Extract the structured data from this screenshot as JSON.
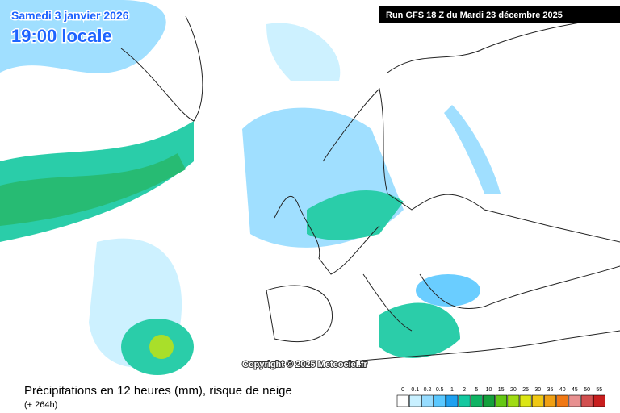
{
  "header": {
    "date": "Samedi 3 janvier 2026",
    "time": "19:00 locale",
    "run": "Run GFS 18 Z du Mardi 23 décembre 2025"
  },
  "copyright": "Copyright © 2025 Meteociel.fr",
  "footer": {
    "title": "Précipitations en 12 heures (mm), risque de neige",
    "subtitle": "(+ 264h)"
  },
  "legend": {
    "items": [
      {
        "label": "0",
        "color": "#ffffff"
      },
      {
        "label": "0.1",
        "color": "#c8f0ff"
      },
      {
        "label": "0.2",
        "color": "#96dcff"
      },
      {
        "label": "0.5",
        "color": "#5ac8ff"
      },
      {
        "label": "1",
        "color": "#1ea0f0"
      },
      {
        "label": "2",
        "color": "#14c8a0"
      },
      {
        "label": "5",
        "color": "#10b464"
      },
      {
        "label": "10",
        "color": "#14a03c"
      },
      {
        "label": "15",
        "color": "#64c814"
      },
      {
        "label": "20",
        "color": "#a0dc14"
      },
      {
        "label": "25",
        "color": "#dce614"
      },
      {
        "label": "30",
        "color": "#f0c814"
      },
      {
        "label": "35",
        "color": "#f0a014"
      },
      {
        "label": "40",
        "color": "#f07814"
      },
      {
        "label": "45",
        "color": "#e89090"
      },
      {
        "label": "50",
        "color": "#d25050"
      },
      {
        "label": "55",
        "color": "#c81e1e"
      }
    ]
  }
}
